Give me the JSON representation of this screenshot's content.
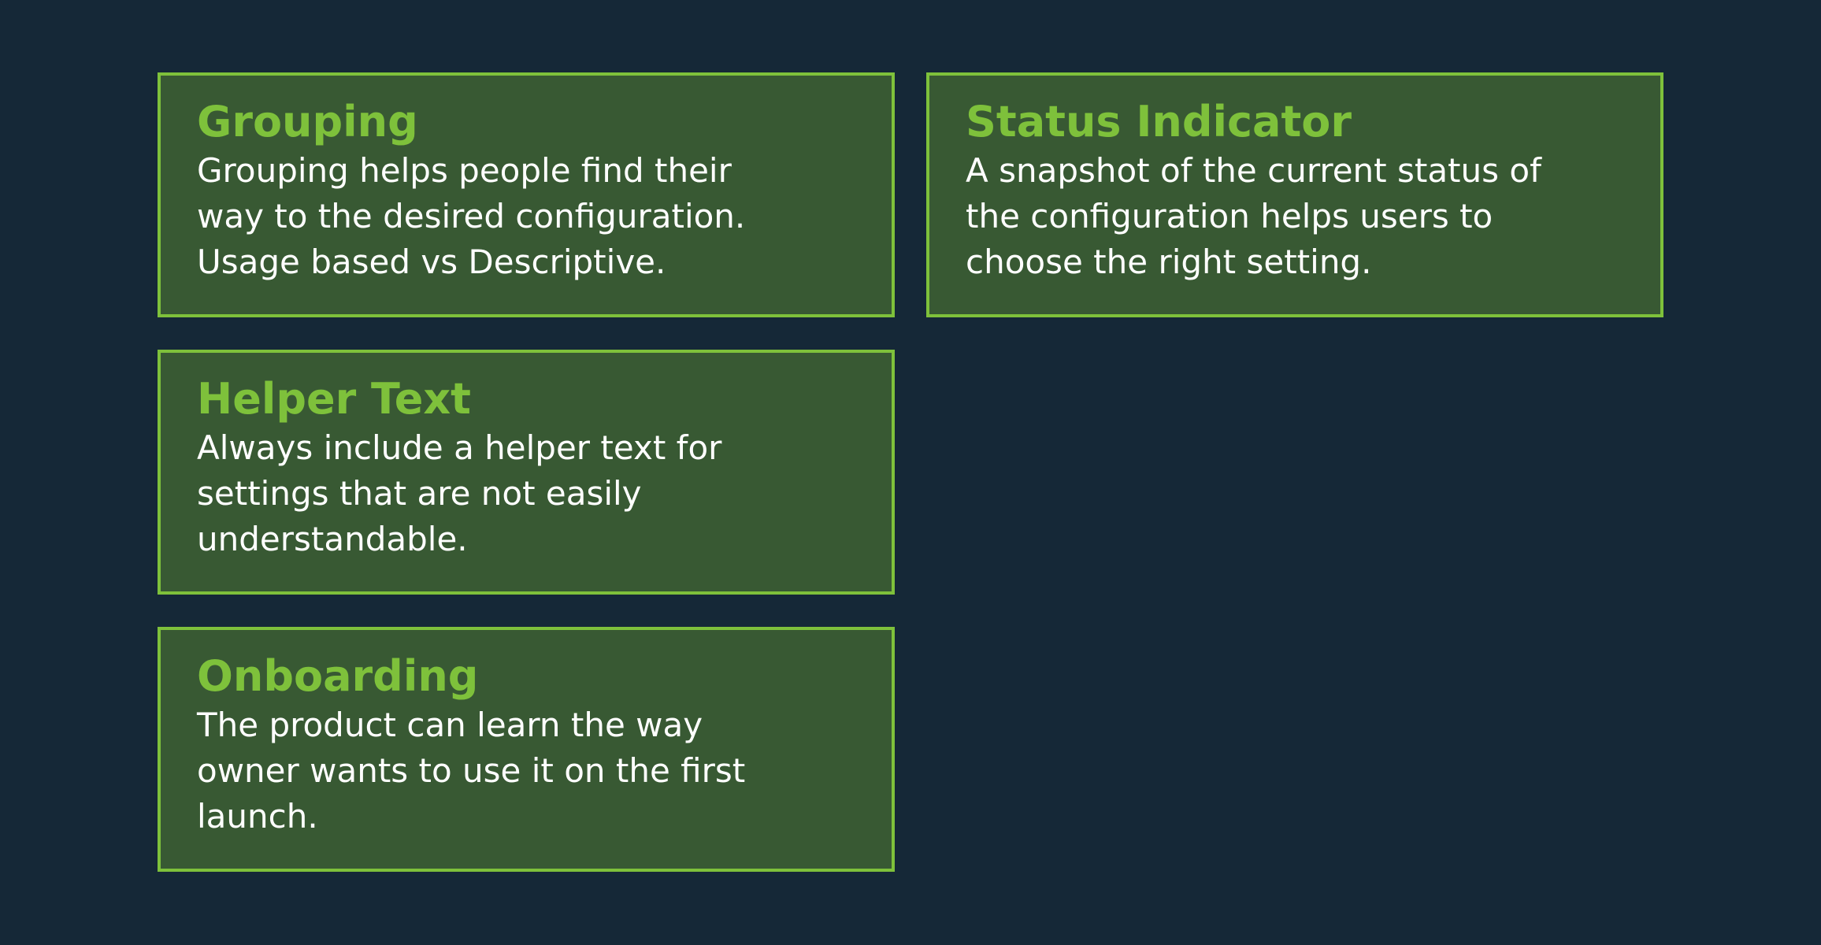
{
  "colors": {
    "background": "#152837",
    "card_fill": "#385933",
    "card_border": "#7ec13b",
    "title": "#7ec13b",
    "text": "#ffffff"
  },
  "cards": [
    {
      "title": "Grouping",
      "lines": [
        "Grouping helps people find their",
        "way to the desired configuration.",
        "Usage based vs Descriptive."
      ]
    },
    {
      "title": "Status Indicator",
      "lines": [
        "A snapshot of the current status of",
        "the configuration helps users to",
        "choose the right setting."
      ]
    },
    {
      "title": "Helper Text",
      "lines": [
        "Always include a helper text for",
        "settings that are not easily",
        "understandable."
      ]
    },
    {
      "title": "Onboarding",
      "lines": [
        "The product can learn the way",
        "owner wants to use it on the first",
        "launch."
      ]
    }
  ]
}
